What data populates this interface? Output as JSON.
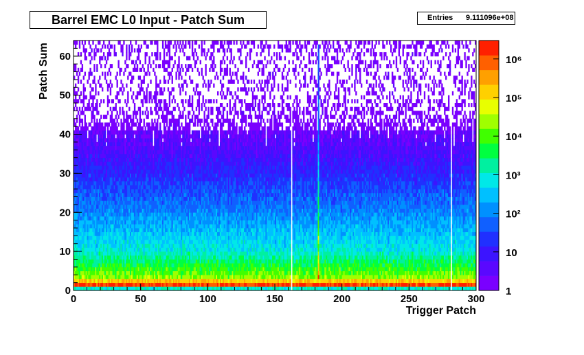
{
  "chart_data": {
    "type": "heatmap",
    "title": "Barrel EMC L0 Input - Patch Sum",
    "stats": {
      "label": "Entries",
      "value": "9.111096e+08"
    },
    "xlabel": "Trigger Patch",
    "ylabel": "Patch Sum",
    "xlim": [
      0,
      300
    ],
    "ylim": [
      0,
      64
    ],
    "x_ticks": [
      "0",
      "50",
      "100",
      "150",
      "200",
      "250",
      "300"
    ],
    "y_ticks": [
      "0",
      "10",
      "20",
      "30",
      "40",
      "50",
      "60"
    ],
    "z_scale": "log",
    "z_range": [
      1,
      3000000
    ],
    "z_ticks": [
      "1",
      "10",
      "10²",
      "10³",
      "10⁴",
      "10⁵",
      "10⁶"
    ],
    "palette": [
      "#7a00ff",
      "#5a08ff",
      "#3c14ff",
      "#2030ff",
      "#1060ff",
      "#0090ff",
      "#00c0ff",
      "#00e8e8",
      "#00f0a0",
      "#00ff40",
      "#40ff00",
      "#a0ff00",
      "#e8ff00",
      "#ffd000",
      "#ffa000",
      "#ff6000",
      "#ff2000"
    ],
    "empty_patches": [
      162,
      281
    ],
    "bright_patch": 182,
    "profile": [
      {
        "patch_sum": 0,
        "counts": 1000
      },
      {
        "patch_sum": 1,
        "counts": 1500000
      },
      {
        "patch_sum": 3,
        "counts": 20000
      },
      {
        "patch_sum": 6,
        "counts": 5000
      },
      {
        "patch_sum": 10,
        "counts": 800
      },
      {
        "patch_sum": 15,
        "counts": 300
      },
      {
        "patch_sum": 20,
        "counts": 100
      },
      {
        "patch_sum": 25,
        "counts": 40
      },
      {
        "patch_sum": 30,
        "counts": 15
      },
      {
        "patch_sum": 35,
        "counts": 6
      },
      {
        "patch_sum": 40,
        "counts": 3
      },
      {
        "patch_sum": 45,
        "counts": 1.5
      },
      {
        "patch_sum": 50,
        "counts": 1
      },
      {
        "patch_sum": 60,
        "counts": 1
      },
      {
        "patch_sum": 63,
        "counts": 2
      }
    ]
  }
}
